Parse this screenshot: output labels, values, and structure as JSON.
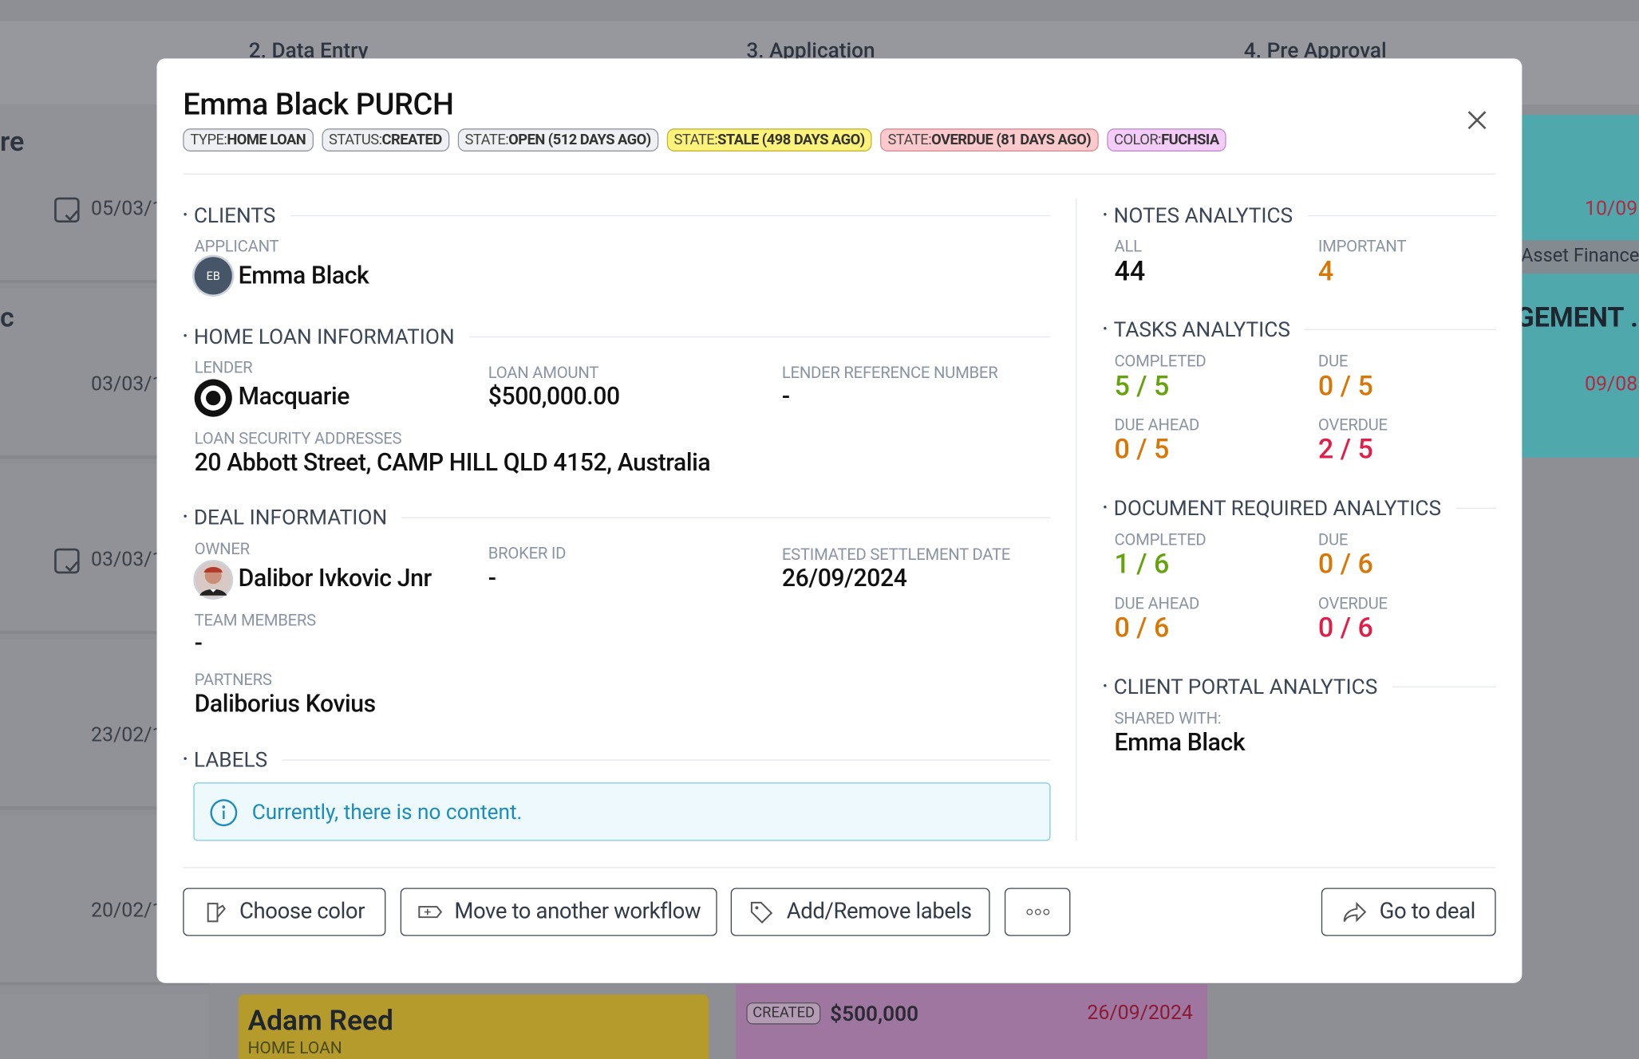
{
  "background": {
    "columns": [
      "2. Data Entry",
      "3. Application",
      "4. Pre Approval"
    ],
    "left_cards": {
      "fragments": [
        "re",
        "c"
      ],
      "dates": [
        "05/03/1",
        "03/03/1",
        "03/03/1",
        "23/02/1",
        "20/02/1"
      ]
    },
    "right_card": {
      "date_1": "10/09",
      "product": "Asset Finance",
      "title": "GEMENT ..",
      "date_2": "09/08"
    },
    "yellow_card": {
      "name": "Adam Reed",
      "type": "HOME LOAN"
    },
    "purple_card": {
      "status": "CREATED",
      "amount": "$500,000",
      "date": "26/09/2024"
    }
  },
  "modal": {
    "title": "Emma Black PURCH",
    "tags": [
      {
        "key": "TYPE:",
        "value": "HOME LOAN"
      },
      {
        "key": "STATUS:",
        "value": "CREATED"
      },
      {
        "key": "STATE:",
        "value": "OPEN (512 DAYS AGO)"
      },
      {
        "key": "STATE:",
        "value": "STALE (498 DAYS AGO)"
      },
      {
        "key": "STATE:",
        "value": "OVERDUE (81 DAYS AGO)"
      },
      {
        "key": "COLOR:",
        "value": "FUCHSIA"
      }
    ],
    "clients": {
      "heading": "CLIENTS",
      "applicant_label": "APPLICANT",
      "applicant_initials": "EB",
      "applicant": "Emma Black"
    },
    "home_loan": {
      "heading": "HOME LOAN INFORMATION",
      "lender_label": "LENDER",
      "lender": "Macquarie",
      "amount_label": "LOAN AMOUNT",
      "amount": "$500,000.00",
      "reference_label": "LENDER REFERENCE NUMBER",
      "reference": "-",
      "address_label": "LOAN SECURITY ADDRESSES",
      "address": "20 Abbott Street, CAMP HILL QLD 4152, Australia"
    },
    "deal": {
      "heading": "DEAL INFORMATION",
      "owner_label": "OWNER",
      "owner": "Dalibor Ivkovic Jnr",
      "broker_label": "BROKER ID",
      "broker": "-",
      "settlement_label": "ESTIMATED SETTLEMENT DATE",
      "settlement": "26/09/2024",
      "team_label": "TEAM MEMBERS",
      "team": "-",
      "partners_label": "PARTNERS",
      "partners": "Daliborius Kovius"
    },
    "labels": {
      "heading": "LABELS",
      "empty": "Currently, there is no content."
    },
    "notes": {
      "heading": "NOTES ANALYTICS",
      "all_label": "ALL",
      "all": "44",
      "important_label": "IMPORTANT",
      "important": "4"
    },
    "tasks": {
      "heading": "TASKS ANALYTICS",
      "completed_label": "COMPLETED",
      "completed": "5 / 5",
      "due_label": "DUE",
      "due": "0 / 5",
      "due_ahead_label": "DUE AHEAD",
      "due_ahead": "0 / 5",
      "overdue_label": "OVERDUE",
      "overdue": "2 / 5"
    },
    "documents": {
      "heading": "DOCUMENT REQUIRED ANALYTICS",
      "completed_label": "COMPLETED",
      "completed": "1 / 6",
      "due_label": "DUE",
      "due": "0 / 6",
      "due_ahead_label": "DUE AHEAD",
      "due_ahead": "0 / 6",
      "overdue_label": "OVERDUE",
      "overdue": "0 / 6"
    },
    "portal": {
      "heading": "CLIENT PORTAL ANALYTICS",
      "shared_label": "SHARED WITH:",
      "shared": "Emma Black"
    },
    "buttons": {
      "color": "Choose color",
      "move": "Move to another workflow",
      "labels": "Add/Remove labels",
      "go": "Go to deal"
    }
  }
}
